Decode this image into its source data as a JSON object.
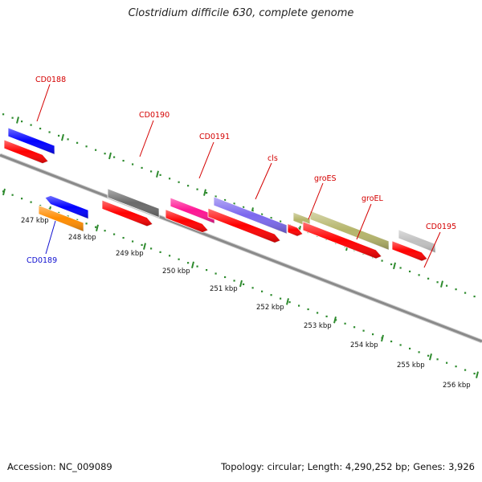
{
  "title": "Clostridium difficile 630, complete genome",
  "footer": {
    "accession": "Accession: NC_009089",
    "summary": "Topology: circular; Length: 4,290,252 bp; Genes: 3,926"
  },
  "colors": {
    "backbone": "#8a8a8a",
    "tick": "#2e8b2e",
    "label_forward": "#d40000",
    "label_reverse": "#1010d0",
    "cds": "#ff0000"
  },
  "genes": [
    {
      "name": "CD0188",
      "strand": "+",
      "color": "#0000ff"
    },
    {
      "name": "CD0189",
      "strand": "-",
      "color": "#0000ff",
      "cds_color": "#ff8c00"
    },
    {
      "name": "CD0190",
      "strand": "+",
      "color": "#6a6a6a"
    },
    {
      "name": "CD0191",
      "strand": "+",
      "color": "#ff1493"
    },
    {
      "name": "cls",
      "strand": "+",
      "color": "#7b68ee"
    },
    {
      "name": "groES",
      "strand": "+",
      "color": "#b5b56a"
    },
    {
      "name": "groEL",
      "strand": "+",
      "color": "#b5b56a"
    },
    {
      "name": "CD0195",
      "strand": "+",
      "color": "#c0c0c0"
    }
  ],
  "kbp_labels": [
    "247 kbp",
    "248 kbp",
    "249 kbp",
    "250 kbp",
    "251 kbp",
    "252 kbp",
    "253 kbp",
    "254 kbp",
    "255 kbp",
    "256 kbp"
  ]
}
